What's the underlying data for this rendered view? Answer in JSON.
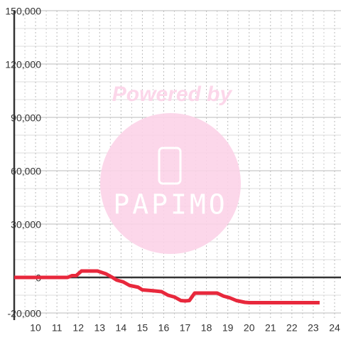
{
  "chart_data": {
    "type": "line",
    "watermark": {
      "top": "Powered by",
      "logo": "PAPIMO"
    },
    "x": [
      9,
      11.5,
      11.7,
      11.9,
      12.15,
      12.9,
      13.3,
      13.6,
      13.8,
      14.1,
      14.4,
      14.8,
      15.0,
      15.5,
      15.9,
      16.2,
      16.5,
      16.8,
      17.0,
      17.2,
      17.45,
      18.5,
      18.8,
      19.1,
      19.4,
      19.8,
      20.0,
      23.3
    ],
    "series": [
      {
        "color": "#e8283c",
        "values": [
          0,
          0,
          1000,
          1000,
          3600,
          3600,
          2000,
          0,
          -1500,
          -2500,
          -4500,
          -5500,
          -7000,
          -7500,
          -8000,
          -10000,
          -11000,
          -13000,
          -13200,
          -13000,
          -8800,
          -8800,
          -10500,
          -11500,
          -13000,
          -14000,
          -14200,
          -14200
        ]
      }
    ],
    "xlim": [
      9,
      24.3
    ],
    "xticks": [
      10,
      11,
      12,
      13,
      14,
      15,
      16,
      17,
      18,
      19,
      20,
      21,
      22,
      23,
      24
    ],
    "xminorticks": [
      9.5,
      10.5,
      11.5,
      12.5,
      13.5,
      14.5,
      15.5,
      16.5,
      17.5,
      18.5,
      19.5,
      20.5,
      21.5,
      22.5,
      23.5
    ],
    "ylim": [
      -24000,
      150000
    ],
    "yticks": [
      {
        "value": -20000,
        "label": "-20,000"
      },
      0,
      {
        "value": 30000,
        "label": "30,000"
      },
      {
        "value": 60000,
        "label": "60,000"
      },
      {
        "value": 90000,
        "label": "90,000"
      },
      {
        "value": 120000,
        "label": "120,000"
      },
      {
        "value": 150000,
        "label": "150,000"
      }
    ],
    "yminorticks": [
      -10000,
      10000,
      20000,
      40000,
      50000,
      70000,
      80000,
      100000,
      110000,
      130000,
      140000
    ],
    "grid": true
  }
}
